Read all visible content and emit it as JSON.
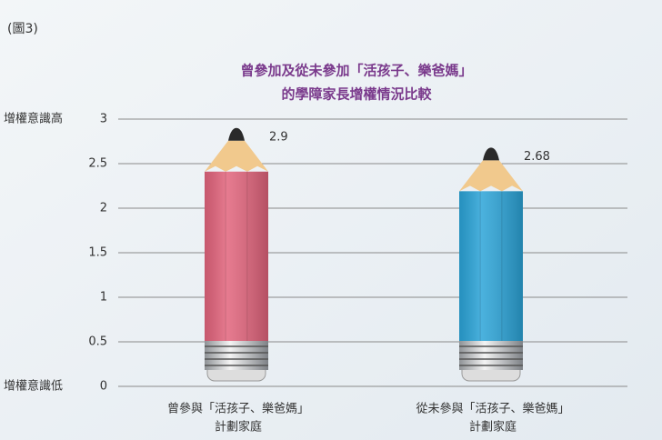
{
  "figure_label": "(圖3)",
  "chart_data": {
    "type": "bar",
    "title": [
      "曾參加及從未參加「活孩子、樂爸媽」",
      "的學障家長增權情況比較"
    ],
    "categories": [
      [
        "曾參與「活孩子、樂爸媽」",
        "計劃家庭"
      ],
      [
        "從未參與「活孩子、樂爸媽」",
        "計劃家庭"
      ]
    ],
    "values": [
      2.9,
      2.68
    ],
    "colors": [
      "#e2647c",
      "#2ba4d8"
    ],
    "ylim": [
      0,
      3
    ],
    "yticks": [
      0,
      0.5,
      1,
      1.5,
      2,
      2.5,
      3
    ],
    "annotations": [
      "增權意識高",
      "增權意識低"
    ],
    "grid": true
  }
}
